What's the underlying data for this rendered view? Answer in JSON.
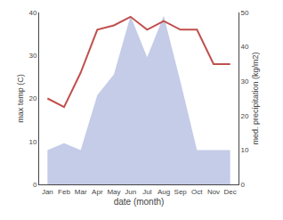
{
  "chart_data": {
    "type": "line",
    "xlabel": "date (month)",
    "ylabel": "max temp (C)",
    "y2label": "med. precipitation (kg/m2)",
    "categories": [
      "Jan",
      "Feb",
      "Mar",
      "Apr",
      "May",
      "Jun",
      "Jul",
      "Aug",
      "Sep",
      "Oct",
      "Nov",
      "Dec"
    ],
    "series": [
      {
        "type": "area",
        "axis": "y2",
        "color": "#c5cce8",
        "values": [
          10,
          12,
          10,
          26,
          32,
          49,
          37,
          49,
          30,
          10,
          10,
          10
        ]
      },
      {
        "type": "line",
        "color": "#c0504d",
        "values": [
          20,
          18,
          26,
          36,
          37,
          39,
          36,
          38,
          36,
          36,
          28,
          28
        ]
      }
    ],
    "ylim": [
      0,
      40
    ],
    "yticks": [
      0,
      10,
      20,
      30,
      40
    ],
    "y2lim": [
      0,
      50
    ],
    "y2ticks": [
      0,
      10,
      20,
      30,
      40,
      50
    ],
    "grid": false
  }
}
